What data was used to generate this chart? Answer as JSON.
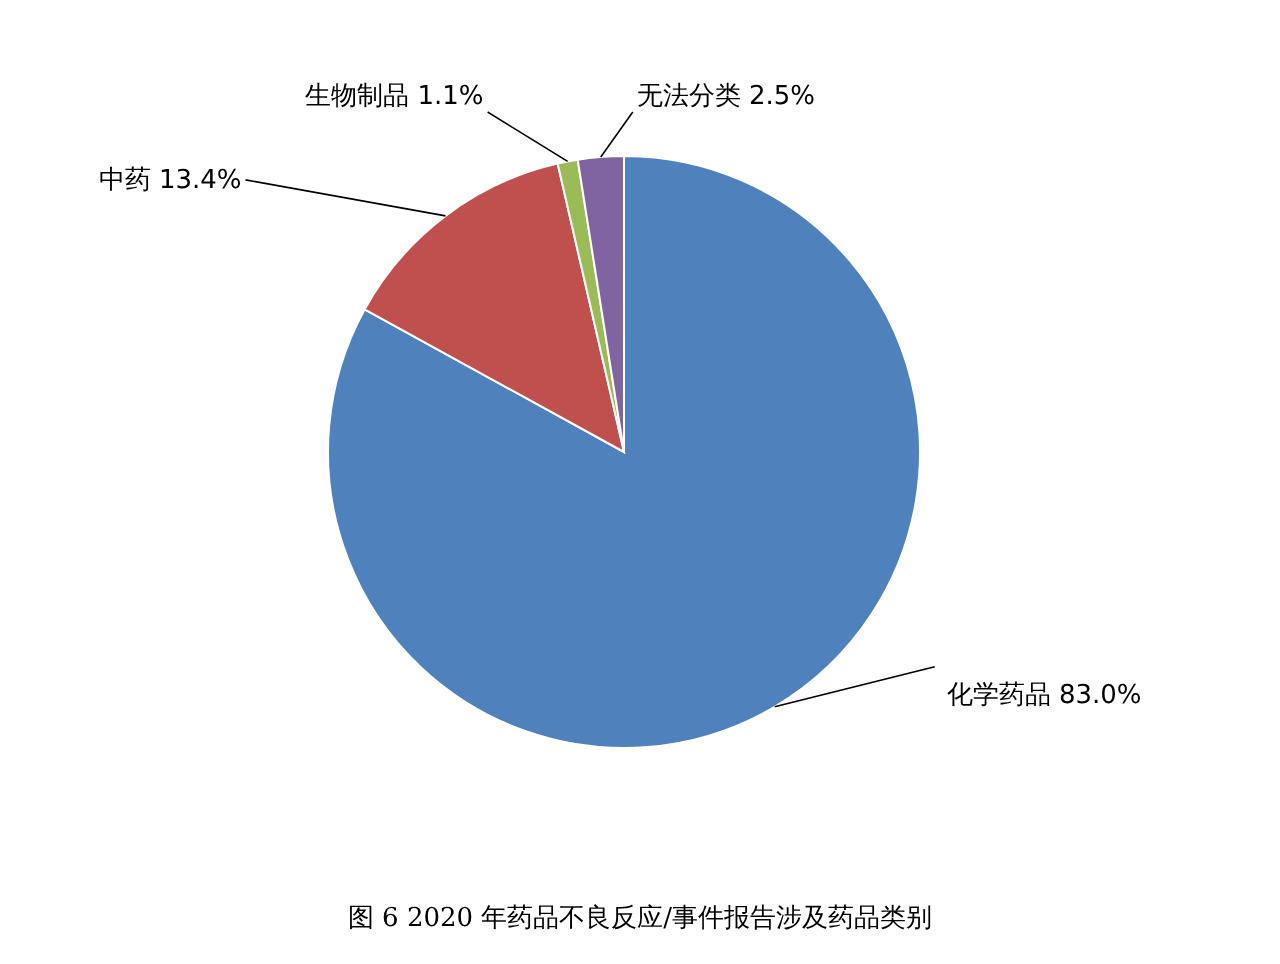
{
  "chart_data": {
    "type": "pie",
    "annotations": [
      "图 6  2020 年药品不良反应/事件报告涉及药品类别"
    ],
    "categories": [
      "化学药品",
      "中药",
      "生物制品",
      "无法分类"
    ],
    "values": [
      83.0,
      13.4,
      1.1,
      2.5
    ],
    "value_labels": [
      "83.0%",
      "13.4%",
      "1.1%",
      "2.5%"
    ],
    "colors": [
      "#4f81bd",
      "#c0504d",
      "#9bbb59",
      "#8064a2"
    ],
    "legend": false
  }
}
